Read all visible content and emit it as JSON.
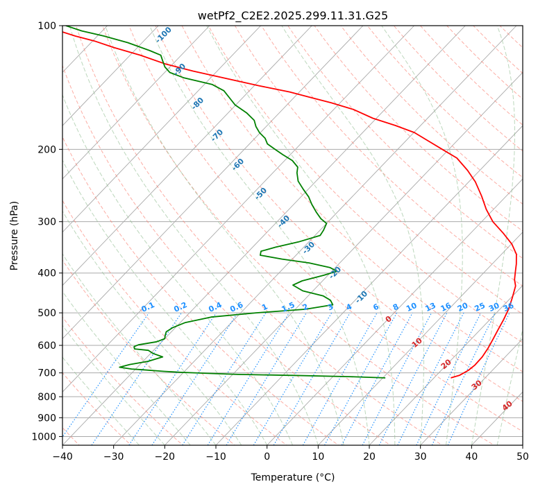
{
  "chart_data": {
    "type": "skew-t",
    "title": "wetPf2_C2E2.2025.299.11.31.G25",
    "xlabel": "Temperature (°C)",
    "ylabel": "Pressure (hPa)",
    "xlim": [
      -40,
      50
    ],
    "ylim": [
      1050,
      100
    ],
    "x_ticks": [
      "−40",
      "−30",
      "−20",
      "−10",
      "0",
      "10",
      "20",
      "30",
      "40",
      "50"
    ],
    "y_ticks": [
      "100",
      "200",
      "300",
      "400",
      "500",
      "600",
      "700",
      "800",
      "900",
      "1000"
    ],
    "temperature_profile": {
      "name": "Temperature",
      "color": "#ff0000",
      "points": [
        [
          23.3,
          720
        ],
        [
          24.5,
          710
        ],
        [
          25.3,
          690
        ],
        [
          25.6,
          670
        ],
        [
          25.5,
          640
        ],
        [
          25.0,
          610
        ],
        [
          24.3,
          580
        ],
        [
          23.5,
          550
        ],
        [
          22.7,
          520
        ],
        [
          21.7,
          490
        ],
        [
          20.3,
          460
        ],
        [
          18.7,
          430
        ],
        [
          17.3,
          415
        ],
        [
          16.2,
          400
        ],
        [
          14.7,
          380
        ],
        [
          12.9,
          360
        ],
        [
          10.1,
          340
        ],
        [
          6.4,
          320
        ],
        [
          2.2,
          300
        ],
        [
          -1.4,
          280
        ],
        [
          -4.8,
          260
        ],
        [
          -8.7,
          240
        ],
        [
          -12.4,
          225
        ],
        [
          -16.8,
          210
        ],
        [
          -21.3,
          200
        ],
        [
          -25.5,
          191
        ],
        [
          -29.9,
          182
        ],
        [
          -34.9,
          175
        ],
        [
          -40.7,
          168
        ],
        [
          -46.1,
          160
        ],
        [
          -51.8,
          154
        ],
        [
          -56.3,
          150
        ],
        [
          -61.9,
          145
        ],
        [
          -69.1,
          140
        ],
        [
          -77.5,
          134
        ],
        [
          -84.7,
          129
        ],
        [
          -91.4,
          124
        ],
        [
          -98.0,
          118
        ],
        [
          -104.7,
          113
        ],
        [
          -109.6,
          109
        ],
        [
          -114.3,
          106
        ],
        [
          -118.4,
          103
        ],
        [
          -121.8,
          100
        ]
      ]
    },
    "dewpoint_profile": {
      "name": "Dewpoint",
      "color": "#008000",
      "points": [
        [
          10.5,
          720
        ],
        [
          3.2,
          715
        ],
        [
          -8.0,
          710
        ],
        [
          -19.0,
          706
        ],
        [
          -25.0,
          702
        ],
        [
          -30.5,
          698
        ],
        [
          -34.0,
          694
        ],
        [
          -38.5,
          688
        ],
        [
          -40.8,
          685
        ],
        [
          -43.5,
          678
        ],
        [
          -42.0,
          668
        ],
        [
          -39.0,
          656
        ],
        [
          -37.0,
          640
        ],
        [
          -39.5,
          628
        ],
        [
          -41.0,
          617
        ],
        [
          -44.0,
          612
        ],
        [
          -44.5,
          604
        ],
        [
          -44.0,
          598
        ],
        [
          -41.0,
          588
        ],
        [
          -40.0,
          578
        ],
        [
          -40.5,
          568
        ],
        [
          -41.0,
          556
        ],
        [
          -40.5,
          543
        ],
        [
          -39.0,
          528
        ],
        [
          -35.0,
          512
        ],
        [
          -27.0,
          500
        ],
        [
          -18.0,
          490
        ],
        [
          -13.5,
          478
        ],
        [
          -14.8,
          466
        ],
        [
          -17.0,
          455
        ],
        [
          -22.0,
          442
        ],
        [
          -25.0,
          428
        ],
        [
          -24.0,
          418
        ],
        [
          -20.8,
          405
        ],
        [
          -19.0,
          396
        ],
        [
          -21.0,
          388
        ],
        [
          -26.0,
          378
        ],
        [
          -32.0,
          370
        ],
        [
          -37.0,
          362
        ],
        [
          -37.6,
          354
        ],
        [
          -35.5,
          346
        ],
        [
          -32.0,
          336
        ],
        [
          -29.0,
          324
        ],
        [
          -29.3,
          315
        ],
        [
          -30.0,
          303
        ],
        [
          -32.0,
          295
        ],
        [
          -34.2,
          284
        ],
        [
          -36.5,
          272
        ],
        [
          -38.5,
          261
        ],
        [
          -41.0,
          250
        ],
        [
          -43.5,
          239
        ],
        [
          -45.3,
          228
        ],
        [
          -46.2,
          221
        ],
        [
          -48.5,
          213
        ],
        [
          -51.5,
          206
        ],
        [
          -54.0,
          200
        ],
        [
          -56.5,
          194
        ],
        [
          -58.0,
          188
        ],
        [
          -60.2,
          182
        ],
        [
          -62.0,
          176
        ],
        [
          -63.5,
          170
        ],
        [
          -66.4,
          163
        ],
        [
          -70.1,
          156
        ],
        [
          -72.1,
          151
        ],
        [
          -75.0,
          144
        ],
        [
          -78.5,
          139
        ],
        [
          -85.2,
          134
        ],
        [
          -89.0,
          130
        ],
        [
          -91.0,
          126
        ],
        [
          -92.5,
          122
        ],
        [
          -94.0,
          118
        ],
        [
          -97.0,
          115
        ],
        [
          -102.8,
          110
        ],
        [
          -108.7,
          106
        ],
        [
          -114.0,
          103
        ],
        [
          -118.1,
          100
        ]
      ]
    },
    "mixing_ratio_labels": [
      "0.1",
      "0.2",
      "0.4",
      "0.6",
      "1",
      "1.5",
      "2",
      "3",
      "4",
      "6",
      "8",
      "10",
      "13",
      "16",
      "20",
      "25",
      "30",
      "36"
    ],
    "moist_adiabat_labels": [
      "0",
      "10",
      "20",
      "30",
      "40"
    ],
    "dry_adiabat_labels": [
      "-100",
      "-90",
      "-80",
      "-70",
      "-60",
      "-50",
      "-40",
      "-30",
      "-20",
      "-10"
    ],
    "colors": {
      "isotherm": "#a9a9a9",
      "dry_adiabat": "#fa8072",
      "moist_adiabat": "#8fbc8f",
      "mixing_ratio": "#1e90ff",
      "moist_label": "#d62728",
      "dry_label": "#1f77b4",
      "isobar": "#a9a9a9"
    }
  }
}
